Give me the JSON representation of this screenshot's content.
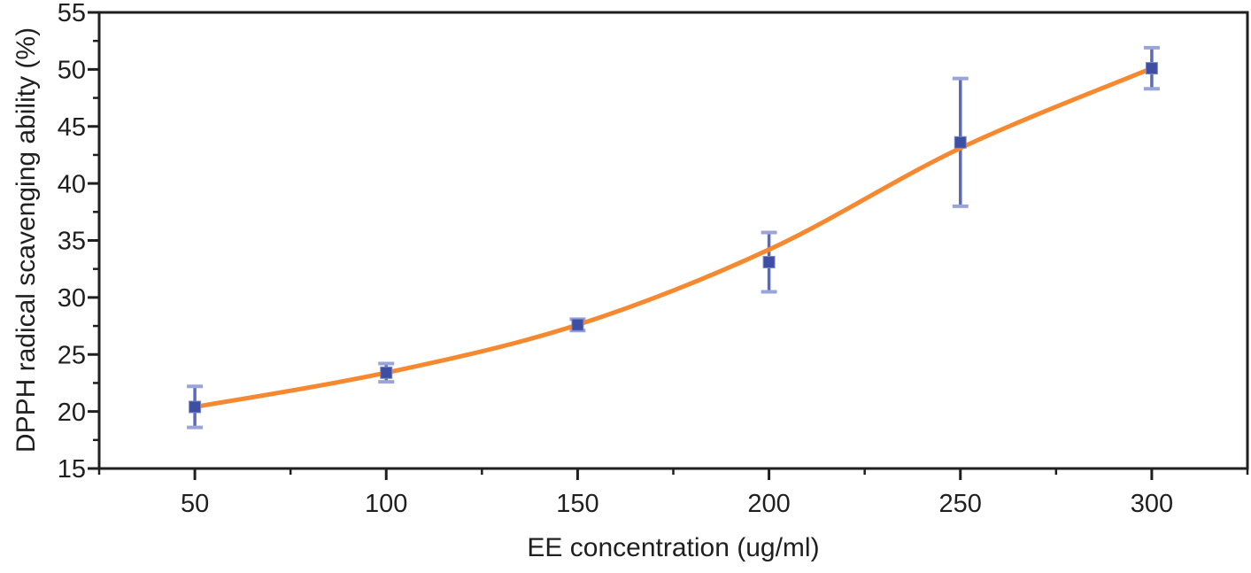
{
  "chart_data": {
    "type": "scatter",
    "title": "",
    "xlabel": "EE concentration (ug/ml)",
    "ylabel": "DPPH radical scavenging ability (%)",
    "x": [
      50,
      100,
      150,
      200,
      250,
      300
    ],
    "y": [
      20.4,
      23.4,
      27.6,
      33.1,
      43.6,
      50.1
    ],
    "y_err": [
      1.8,
      0.8,
      0.5,
      2.6,
      5.6,
      1.8
    ],
    "fit_line": {
      "x": [
        50,
        100,
        150,
        200,
        250,
        300
      ],
      "y": [
        20.4,
        23.4,
        27.6,
        34.2,
        43.1,
        50.1
      ]
    },
    "xlim": [
      25,
      325
    ],
    "ylim": [
      15,
      55
    ],
    "x_major_ticks": [
      50,
      100,
      150,
      200,
      250,
      300
    ],
    "x_minor_ticks": [
      25,
      75,
      125,
      175,
      225,
      275,
      325
    ],
    "y_major_ticks": [
      15,
      20,
      25,
      30,
      35,
      40,
      45,
      50,
      55
    ],
    "y_minor_ticks": [
      17.5,
      22.5,
      27.5,
      32.5,
      37.5,
      42.5,
      47.5,
      52.5
    ],
    "grid": false,
    "legend": "none",
    "marker_shape": "square",
    "colors": {
      "fit_line": "#F6892F",
      "marker": "#3E4FA3",
      "marker_edge": "#7C89CC",
      "error_line": "#5A6ABA",
      "error_cap": "#99A4D9",
      "axis": "#1F1F1F",
      "text": "#1F1F1F"
    }
  }
}
